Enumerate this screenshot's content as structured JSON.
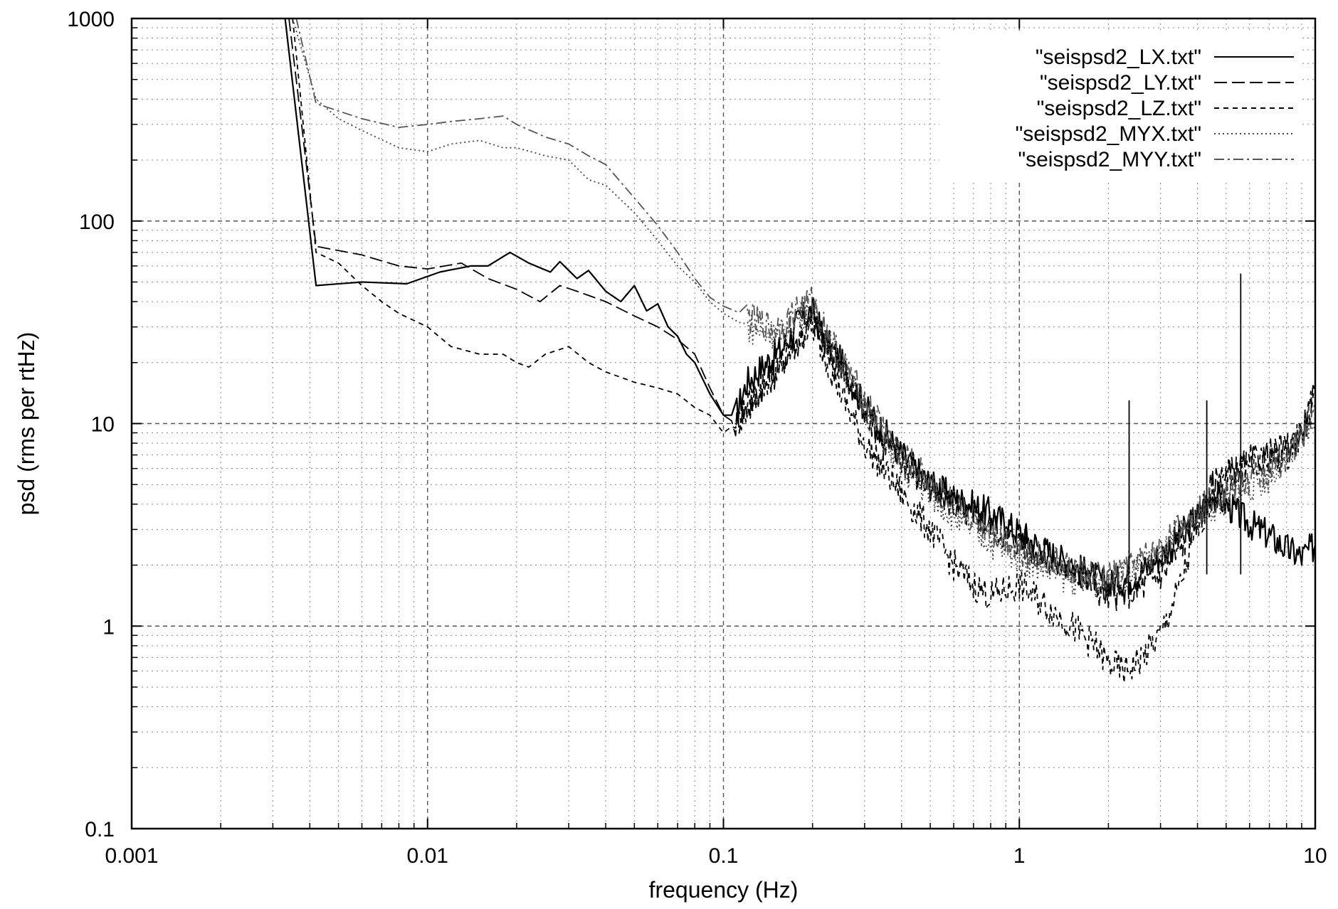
{
  "chart_data": {
    "type": "line",
    "title": "",
    "xlabel": "frequency (Hz)",
    "ylabel": "psd (rms per rtHz)",
    "x_scale": "log",
    "y_scale": "log",
    "xlim": [
      0.001,
      10
    ],
    "ylim": [
      0.1,
      1000
    ],
    "x_ticks": [
      "0.001",
      "0.01",
      "0.1",
      "1",
      "10"
    ],
    "y_ticks": [
      "0.1",
      "1",
      "10",
      "100",
      "1000"
    ],
    "grid": true,
    "legend_position": "top-right",
    "series": [
      {
        "name": "\"seispsd2_LX.txt\"",
        "dash": "solid",
        "color": "#000000",
        "points": [
          [
            0.0033,
            1000
          ],
          [
            0.0042,
            48
          ],
          [
            0.006,
            50
          ],
          [
            0.0085,
            49
          ],
          [
            0.011,
            56
          ],
          [
            0.014,
            60
          ],
          [
            0.016,
            60
          ],
          [
            0.019,
            70
          ],
          [
            0.022,
            62
          ],
          [
            0.026,
            56
          ],
          [
            0.028,
            63
          ],
          [
            0.032,
            52
          ],
          [
            0.035,
            57
          ],
          [
            0.04,
            45
          ],
          [
            0.045,
            40
          ],
          [
            0.05,
            48
          ],
          [
            0.055,
            36
          ],
          [
            0.06,
            39
          ],
          [
            0.065,
            30
          ],
          [
            0.07,
            27
          ],
          [
            0.075,
            22
          ],
          [
            0.08,
            20
          ],
          [
            0.09,
            14
          ],
          [
            0.1,
            11
          ],
          [
            0.11,
            11
          ],
          [
            0.12,
            16
          ],
          [
            0.14,
            20
          ],
          [
            0.16,
            24
          ],
          [
            0.18,
            32
          ],
          [
            0.2,
            36
          ],
          [
            0.22,
            26
          ],
          [
            0.25,
            20
          ],
          [
            0.3,
            12
          ],
          [
            0.4,
            7
          ],
          [
            0.5,
            5
          ],
          [
            0.6,
            4.3
          ],
          [
            0.8,
            3.6
          ],
          [
            1.0,
            2.9
          ],
          [
            1.2,
            2.4
          ],
          [
            1.5,
            2.0
          ],
          [
            2.0,
            1.6
          ],
          [
            2.5,
            1.8
          ],
          [
            3.0,
            2.2
          ],
          [
            3.5,
            2.8
          ],
          [
            4.0,
            3.5
          ],
          [
            4.5,
            4.5
          ],
          [
            5.0,
            4.0
          ],
          [
            6.0,
            3.2
          ],
          [
            7.0,
            2.8
          ],
          [
            8.0,
            2.4
          ],
          [
            9.0,
            2.2
          ],
          [
            10.0,
            2.5
          ]
        ]
      },
      {
        "name": "\"seispsd2_LY.txt\"",
        "dash": "long-dash",
        "color": "#000000",
        "points": [
          [
            0.0034,
            1000
          ],
          [
            0.0042,
            75
          ],
          [
            0.006,
            68
          ],
          [
            0.008,
            60
          ],
          [
            0.01,
            58
          ],
          [
            0.013,
            62
          ],
          [
            0.016,
            52
          ],
          [
            0.02,
            46
          ],
          [
            0.024,
            40
          ],
          [
            0.028,
            48
          ],
          [
            0.032,
            45
          ],
          [
            0.04,
            40
          ],
          [
            0.05,
            34
          ],
          [
            0.06,
            30
          ],
          [
            0.07,
            26
          ],
          [
            0.08,
            22
          ],
          [
            0.09,
            15
          ],
          [
            0.1,
            11
          ],
          [
            0.11,
            10
          ],
          [
            0.13,
            14
          ],
          [
            0.15,
            18
          ],
          [
            0.18,
            26
          ],
          [
            0.2,
            33
          ],
          [
            0.23,
            22
          ],
          [
            0.28,
            14
          ],
          [
            0.35,
            8
          ],
          [
            0.45,
            5.5
          ],
          [
            0.6,
            4
          ],
          [
            0.8,
            3.1
          ],
          [
            1.0,
            2.6
          ],
          [
            1.3,
            2.1
          ],
          [
            1.6,
            1.8
          ],
          [
            2.0,
            1.4
          ],
          [
            2.5,
            1.5
          ],
          [
            3.0,
            1.8
          ],
          [
            3.5,
            2.4
          ],
          [
            4.0,
            3.4
          ],
          [
            4.5,
            5.0
          ],
          [
            5.0,
            5.5
          ],
          [
            6.0,
            6.5
          ],
          [
            7.0,
            7.0
          ],
          [
            8.0,
            7.5
          ],
          [
            9.0,
            9.0
          ],
          [
            10.0,
            14
          ]
        ]
      },
      {
        "name": "\"seispsd2_LZ.txt\"",
        "dash": "short-dash",
        "color": "#000000",
        "points": [
          [
            0.0035,
            1000
          ],
          [
            0.0042,
            70
          ],
          [
            0.005,
            62
          ],
          [
            0.006,
            48
          ],
          [
            0.007,
            40
          ],
          [
            0.008,
            35
          ],
          [
            0.01,
            30
          ],
          [
            0.012,
            24
          ],
          [
            0.015,
            22
          ],
          [
            0.018,
            22
          ],
          [
            0.02,
            20
          ],
          [
            0.022,
            19
          ],
          [
            0.025,
            22
          ],
          [
            0.03,
            24
          ],
          [
            0.035,
            20
          ],
          [
            0.04,
            18
          ],
          [
            0.05,
            16
          ],
          [
            0.06,
            15
          ],
          [
            0.07,
            14
          ],
          [
            0.08,
            12
          ],
          [
            0.09,
            11
          ],
          [
            0.1,
            9
          ],
          [
            0.11,
            10
          ],
          [
            0.13,
            14
          ],
          [
            0.15,
            18
          ],
          [
            0.18,
            26
          ],
          [
            0.2,
            30
          ],
          [
            0.22,
            22
          ],
          [
            0.25,
            14
          ],
          [
            0.3,
            8
          ],
          [
            0.4,
            4.5
          ],
          [
            0.5,
            3
          ],
          [
            0.6,
            2
          ],
          [
            0.7,
            1.6
          ],
          [
            0.8,
            1.4
          ],
          [
            1.0,
            1.6
          ],
          [
            1.2,
            1.3
          ],
          [
            1.5,
            1.0
          ],
          [
            1.8,
            0.8
          ],
          [
            2.0,
            0.65
          ],
          [
            2.3,
            0.6
          ],
          [
            2.6,
            0.7
          ],
          [
            3.0,
            0.9
          ],
          [
            3.5,
            1.6
          ],
          [
            4.0,
            3.0
          ],
          [
            4.5,
            4.5
          ],
          [
            5.0,
            5.5
          ],
          [
            6.0,
            6
          ],
          [
            7.0,
            6.5
          ],
          [
            8.0,
            7
          ],
          [
            9.0,
            9
          ],
          [
            10.0,
            15
          ]
        ]
      },
      {
        "name": "\"seispsd2_MYX.txt\"",
        "dash": "dotted",
        "color": "#444444",
        "points": [
          [
            0.0035,
            1000
          ],
          [
            0.0042,
            400
          ],
          [
            0.005,
            320
          ],
          [
            0.006,
            280
          ],
          [
            0.008,
            230
          ],
          [
            0.01,
            220
          ],
          [
            0.012,
            240
          ],
          [
            0.015,
            250
          ],
          [
            0.018,
            230
          ],
          [
            0.02,
            230
          ],
          [
            0.025,
            210
          ],
          [
            0.03,
            200
          ],
          [
            0.035,
            160
          ],
          [
            0.04,
            150
          ],
          [
            0.05,
            110
          ],
          [
            0.06,
            80
          ],
          [
            0.07,
            60
          ],
          [
            0.08,
            50
          ],
          [
            0.09,
            40
          ],
          [
            0.1,
            35
          ],
          [
            0.12,
            30
          ],
          [
            0.14,
            28
          ],
          [
            0.16,
            28
          ],
          [
            0.18,
            34
          ],
          [
            0.2,
            36
          ],
          [
            0.23,
            24
          ],
          [
            0.3,
            12
          ],
          [
            0.4,
            6
          ],
          [
            0.6,
            3.5
          ],
          [
            0.8,
            2.6
          ],
          [
            1.0,
            2.2
          ],
          [
            1.5,
            1.7
          ],
          [
            2.0,
            1.6
          ],
          [
            3.0,
            2.2
          ],
          [
            4.0,
            3.5
          ],
          [
            5.0,
            4.2
          ],
          [
            6.0,
            4.8
          ],
          [
            7.0,
            5.5
          ],
          [
            8.0,
            6.5
          ],
          [
            9.0,
            8
          ],
          [
            10.0,
            11
          ]
        ]
      },
      {
        "name": "\"seispsd2_MYY.txt\"",
        "dash": "dash-dot",
        "color": "#555555",
        "points": [
          [
            0.0036,
            1000
          ],
          [
            0.0042,
            380
          ],
          [
            0.006,
            320
          ],
          [
            0.008,
            290
          ],
          [
            0.01,
            300
          ],
          [
            0.012,
            310
          ],
          [
            0.015,
            320
          ],
          [
            0.018,
            330
          ],
          [
            0.02,
            300
          ],
          [
            0.025,
            260
          ],
          [
            0.03,
            240
          ],
          [
            0.035,
            210
          ],
          [
            0.04,
            190
          ],
          [
            0.05,
            130
          ],
          [
            0.06,
            95
          ],
          [
            0.07,
            70
          ],
          [
            0.08,
            52
          ],
          [
            0.09,
            42
          ],
          [
            0.1,
            38
          ],
          [
            0.12,
            34
          ],
          [
            0.14,
            30
          ],
          [
            0.16,
            30
          ],
          [
            0.18,
            38
          ],
          [
            0.2,
            40
          ],
          [
            0.23,
            26
          ],
          [
            0.3,
            13
          ],
          [
            0.4,
            7
          ],
          [
            0.6,
            4
          ],
          [
            0.8,
            3
          ],
          [
            1.0,
            2.4
          ],
          [
            1.5,
            1.9
          ],
          [
            2.0,
            1.7
          ],
          [
            3.0,
            2.4
          ],
          [
            4.0,
            3.8
          ],
          [
            5.0,
            4.6
          ],
          [
            6.0,
            5.2
          ],
          [
            7.0,
            5.8
          ],
          [
            8.0,
            7
          ],
          [
            9.0,
            8.5
          ],
          [
            10.0,
            12
          ]
        ]
      }
    ],
    "spikes": [
      {
        "series": 0,
        "x": 2.35,
        "y": 13
      },
      {
        "series": 0,
        "x": 5.6,
        "y": 55
      },
      {
        "series": 0,
        "x": 4.3,
        "y": 13
      }
    ]
  }
}
